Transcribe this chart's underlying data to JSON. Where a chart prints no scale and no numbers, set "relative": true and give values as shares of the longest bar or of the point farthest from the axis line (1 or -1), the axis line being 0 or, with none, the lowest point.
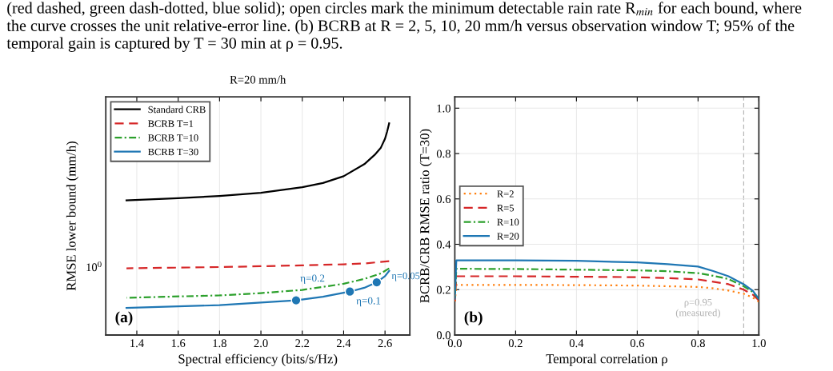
{
  "chart_data": [
    {
      "type": "line",
      "title": "R=20 mm/h",
      "xlabel": "Spectral efficiency (bits/s/Hz)",
      "ylabel": "RMSE lower bound (mm/h)",
      "relative": true,
      "grid": true,
      "legend": "top left",
      "xlim": [
        1.25,
        2.72
      ],
      "xticks": [
        {
          "value": 1.4,
          "label": "1.4"
        },
        {
          "value": 1.6,
          "label": "1.6"
        },
        {
          "value": 1.8,
          "label": "1.8"
        },
        {
          "value": 2.0,
          "label": "2.0"
        },
        {
          "value": 2.2,
          "label": "2.2"
        },
        {
          "value": 2.4,
          "label": "2.4"
        },
        {
          "value": 2.6,
          "label": "2.6"
        }
      ],
      "series": [
        {
          "name": "Standard CRB",
          "type": "line",
          "color": "#000000",
          "line_style": "solid",
          "x": [
            1.35,
            1.6,
            1.8,
            2.0,
            2.2,
            2.3,
            2.4,
            2.5,
            2.55,
            2.58,
            2.6,
            2.61,
            2.62
          ],
          "values": [
            0.636,
            0.646,
            0.657,
            0.672,
            0.698,
            0.718,
            0.75,
            0.807,
            0.851,
            0.885,
            0.927,
            0.96,
            1.0
          ]
        },
        {
          "name": "BCRB T=1",
          "type": "line",
          "color": "#d62728",
          "line_style": "dashed",
          "x": [
            1.35,
            1.8,
            2.0,
            2.2,
            2.4,
            2.5,
            2.62
          ],
          "values": [
            0.315,
            0.321,
            0.325,
            0.329,
            0.334,
            0.338,
            0.349
          ]
        },
        {
          "name": "BCRB T=10",
          "type": "line",
          "color": "#2ca02c",
          "line_style": "dashdot",
          "x": [
            1.35,
            1.8,
            2.0,
            2.2,
            2.4,
            2.5,
            2.58,
            2.62
          ],
          "values": [
            0.176,
            0.187,
            0.198,
            0.213,
            0.242,
            0.265,
            0.291,
            0.315
          ]
        },
        {
          "name": "BCRB T=30",
          "type": "line",
          "color": "#1f77b4",
          "line_style": "solid",
          "x": [
            1.35,
            1.8,
            2.0,
            2.17,
            2.3,
            2.43,
            2.5,
            2.56,
            2.6,
            2.62
          ],
          "values": [
            0.128,
            0.141,
            0.153,
            0.164,
            0.181,
            0.205,
            0.223,
            0.249,
            0.278,
            0.303
          ]
        },
        {
          "type": "scatter",
          "color": "#1f77b4",
          "marker": "circle",
          "x": [
            2.17,
            2.43,
            2.56
          ],
          "values": [
            0.164,
            0.205,
            0.249
          ]
        }
      ],
      "annotations": [
        "(red dashed, green dash-dotted, blue solid); open circles mark the minimum detectable rain rate R$_{min}$ for each bound, where\nthe curve crosses the unit relative-error line. (b) BCRB at R = 2, 5, 10, 20 mm/h versus observation window T; 95% of the\ntemporal gain is captured by T = 30 min at ρ = 0.95.",
        "10$^{0}$",
        "η=0.2",
        "η=0.1",
        "η=0.05",
        "(a)"
      ]
    },
    {
      "type": "line",
      "xlabel": "Temporal correlation ρ",
      "ylabel": "BCRB/CRB RMSE ratio (T=30)",
      "grid": true,
      "legend": "left",
      "xlim": [
        0,
        1
      ],
      "ylim": [
        0,
        1.05
      ],
      "xticks": [
        {
          "value": 0,
          "label": "0.0"
        },
        {
          "value": 0.2,
          "label": "0.2"
        },
        {
          "value": 0.4,
          "label": "0.4"
        },
        {
          "value": 0.6,
          "label": "0.6"
        },
        {
          "value": 0.8,
          "label": "0.8"
        },
        {
          "value": 1,
          "label": "1.0"
        }
      ],
      "yticks": [
        {
          "value": 0,
          "label": "0.0"
        },
        {
          "value": 0.2,
          "label": "0.2"
        },
        {
          "value": 0.4,
          "label": "0.4"
        },
        {
          "value": 0.6,
          "label": "0.6"
        },
        {
          "value": 0.8,
          "label": "0.8"
        },
        {
          "value": 1,
          "label": "1.0"
        }
      ],
      "series": [
        {
          "name": "R=2",
          "color": "#ff7f0e",
          "line_style": "dotted",
          "x": [
            0,
            0.005,
            0.2,
            0.4,
            0.6,
            0.7,
            0.8,
            0.85,
            0.9,
            0.95,
            0.98,
            1.0
          ],
          "values": [
            0.14,
            0.221,
            0.221,
            0.22,
            0.218,
            0.215,
            0.212,
            0.206,
            0.196,
            0.182,
            0.165,
            0.147
          ]
        },
        {
          "name": "R=5",
          "color": "#d62728",
          "line_style": "dashed",
          "x": [
            0,
            0.005,
            0.2,
            0.4,
            0.6,
            0.7,
            0.8,
            0.85,
            0.9,
            0.95,
            0.98,
            1.0
          ],
          "values": [
            0.15,
            0.259,
            0.259,
            0.257,
            0.255,
            0.251,
            0.245,
            0.235,
            0.224,
            0.2,
            0.178,
            0.153
          ]
        },
        {
          "name": "R=10",
          "color": "#2ca02c",
          "line_style": "dashdot",
          "x": [
            0,
            0.005,
            0.2,
            0.4,
            0.6,
            0.7,
            0.8,
            0.85,
            0.9,
            0.95,
            0.98,
            1.0
          ],
          "values": [
            0.155,
            0.292,
            0.291,
            0.288,
            0.285,
            0.281,
            0.273,
            0.261,
            0.247,
            0.215,
            0.19,
            0.159
          ]
        },
        {
          "name": "R=20",
          "color": "#1f77b4",
          "line_style": "solid",
          "x": [
            0,
            0.005,
            0.2,
            0.4,
            0.6,
            0.7,
            0.8,
            0.85,
            0.9,
            0.95,
            0.98,
            1.0
          ],
          "values": [
            0.16,
            0.329,
            0.329,
            0.327,
            0.32,
            0.312,
            0.302,
            0.282,
            0.259,
            0.224,
            0.195,
            0.159
          ]
        }
      ],
      "ref_lines": [
        {
          "axis": "x",
          "value": 0.95,
          "label": "ρ=0.95\n(measured)",
          "color": "#b0b0b0",
          "line_style": "dashed"
        }
      ],
      "annotations": [
        "(b)"
      ]
    }
  ]
}
